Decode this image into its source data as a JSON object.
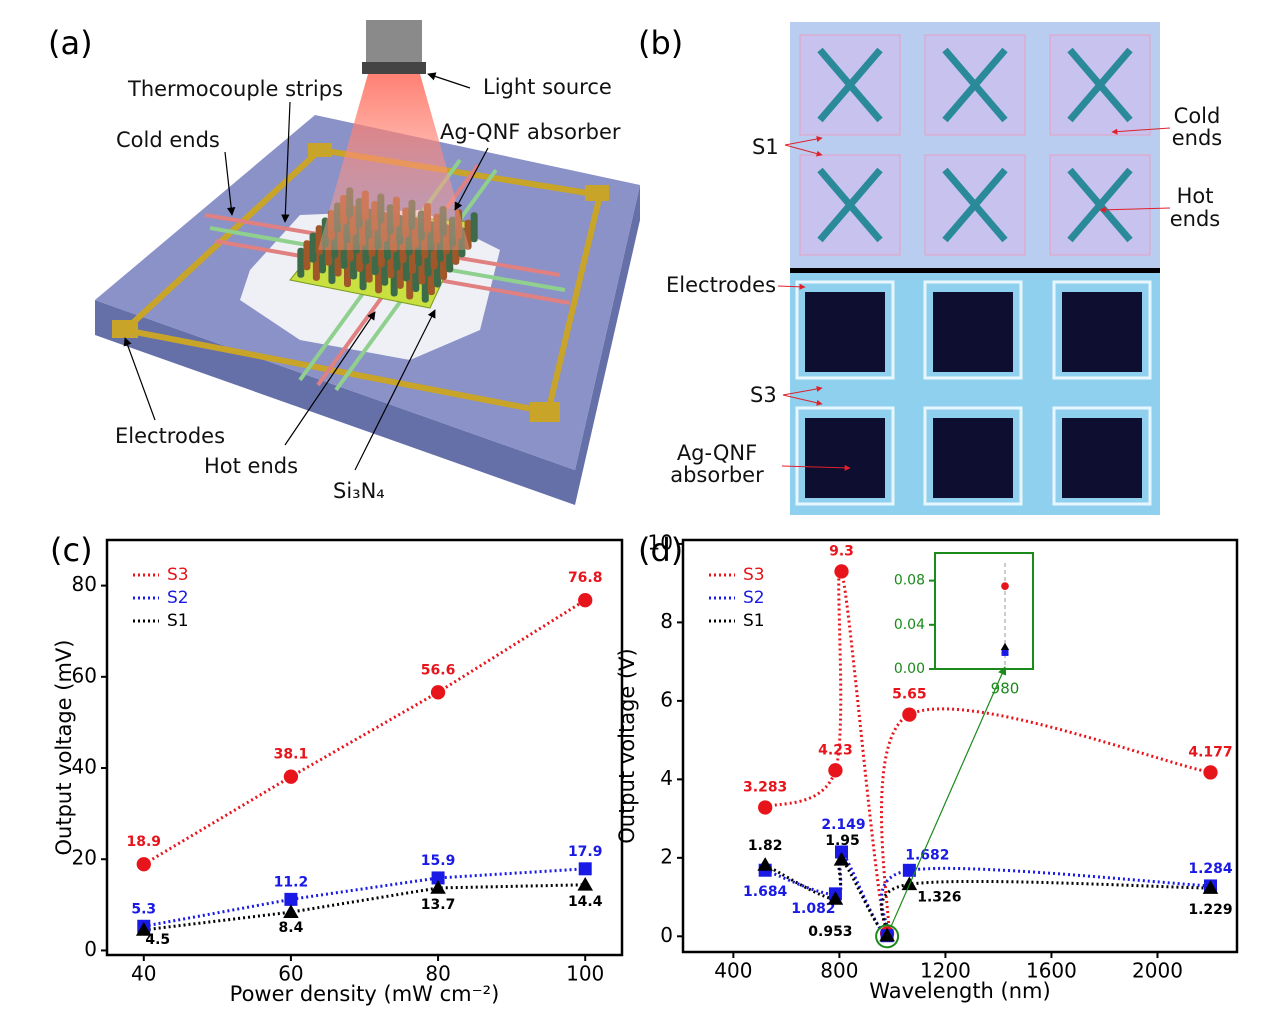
{
  "panels": {
    "a": {
      "label": "(a)",
      "light_source": "Light source",
      "thermocouple_strips": "Thermocouple strips",
      "absorber": "Ag-QNF absorber",
      "cold_ends": "Cold ends",
      "electrodes": "Electrodes",
      "hot_ends": "Hot ends",
      "substrate": "Si₃N₄"
    },
    "b": {
      "label": "(b)",
      "s1": "S1",
      "cold_ends": [
        "Cold",
        "ends"
      ],
      "hot_ends": [
        "Hot",
        "ends"
      ],
      "electrodes": "Electrodes",
      "s3": "S3",
      "absorber": [
        "Ag-QNF",
        "absorber"
      ]
    }
  },
  "chart_data": [
    {
      "type": "line",
      "panel": "(c)",
      "xlabel": "Power density (mW cm⁻²)",
      "ylabel": "Output voltage (mV)",
      "x": [
        40,
        60,
        80,
        100
      ],
      "xlim": [
        35,
        105
      ],
      "ylim": [
        -1,
        90
      ],
      "xticks": [
        40,
        60,
        80,
        100
      ],
      "yticks": [
        0,
        20,
        40,
        60,
        80
      ],
      "legend": "upper left",
      "line_style": "dotted",
      "smooth": false,
      "series": [
        {
          "name": "S3",
          "color": "#e8141b",
          "marker": "circle",
          "values": [
            18.9,
            38.1,
            56.6,
            76.8
          ]
        },
        {
          "name": "S2",
          "color": "#1a1ae6",
          "marker": "square",
          "values": [
            5.3,
            11.2,
            15.9,
            17.9
          ]
        },
        {
          "name": "S1",
          "color": "#000000",
          "marker": "triangle",
          "values": [
            4.5,
            8.4,
            13.7,
            14.4
          ]
        }
      ]
    },
    {
      "type": "line",
      "panel": "(d)",
      "xlabel": "Wavelength (nm)",
      "ylabel": "Output voltage (V)",
      "x": [
        520,
        785,
        808,
        980,
        1064,
        2200
      ],
      "xlim": [
        210,
        2300
      ],
      "ylim": [
        -0.4,
        10.1
      ],
      "xticks": [
        400,
        800,
        1200,
        1600,
        2000
      ],
      "yticks": [
        0,
        2,
        4,
        6,
        8,
        10
      ],
      "legend": "upper left",
      "line_style": "dotted",
      "smooth": true,
      "series": [
        {
          "name": "S3",
          "color": "#e8141b",
          "marker": "circle",
          "values": [
            3.283,
            4.23,
            9.3,
            0.075,
            5.65,
            4.177
          ]
        },
        {
          "name": "S2",
          "color": "#1a1ae6",
          "marker": "square",
          "values": [
            1.684,
            1.082,
            2.149,
            0.015,
            1.682,
            1.284
          ]
        },
        {
          "name": "S1",
          "color": "#000000",
          "marker": "triangle",
          "values": [
            1.82,
            0.953,
            1.95,
            0.02,
            1.326,
            1.229
          ]
        }
      ],
      "inset": {
        "color": "#1a8a1a",
        "xlim": [
          930,
          1000
        ],
        "ylim": [
          0,
          0.105
        ],
        "xticks": [
          980
        ],
        "yticks": [
          {
            "value": 0,
            "label": "0.00"
          },
          {
            "value": 0.04,
            "label": "0.04"
          },
          {
            "value": 0.08,
            "label": "0.08"
          }
        ]
      }
    }
  ]
}
